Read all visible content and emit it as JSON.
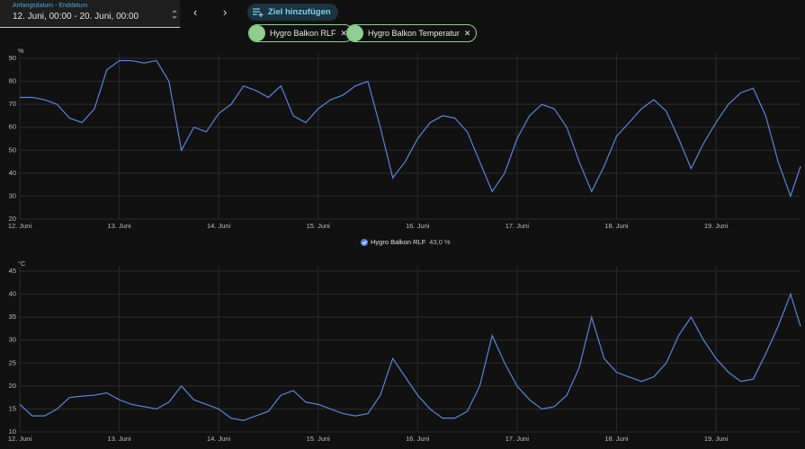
{
  "date_picker": {
    "label": "Anfangsdatum - Enddatum",
    "value": "12. Juni, 00:00 - 20. Juni, 00:00"
  },
  "add_target": "Ziel hinzufügen",
  "targets": [
    "Hygro Balkon RLF",
    "Hygro Balkon Temperatur"
  ],
  "chart_data": [
    {
      "type": "line",
      "y_unit": "%",
      "grid": true,
      "x": [
        0,
        0.125,
        0.25,
        0.375,
        0.5,
        0.625,
        0.75,
        0.875,
        1,
        1.125,
        1.25,
        1.375,
        1.5,
        1.625,
        1.75,
        1.875,
        2,
        2.125,
        2.25,
        2.375,
        2.5,
        2.625,
        2.75,
        2.875,
        3,
        3.125,
        3.25,
        3.375,
        3.5,
        3.625,
        3.75,
        3.875,
        4,
        4.125,
        4.25,
        4.375,
        4.5,
        4.625,
        4.75,
        4.875,
        5,
        5.125,
        5.25,
        5.375,
        5.5,
        5.625,
        5.75,
        5.875,
        6,
        6.125,
        6.25,
        6.375,
        6.5,
        6.625,
        6.75,
        6.875,
        7,
        7.125,
        7.25,
        7.375,
        7.5,
        7.625,
        7.75,
        7.85
      ],
      "series": [
        {
          "name": "Hygro Balkon RLF",
          "color": "#5b84d8",
          "legend_value": "43,0 %",
          "values": [
            73,
            73,
            72,
            70,
            64,
            62,
            68,
            85,
            89,
            89,
            88,
            89,
            80,
            50,
            60,
            58,
            66,
            70,
            78,
            76,
            73,
            78,
            65,
            62,
            68,
            72,
            74,
            78,
            80,
            60,
            38,
            45,
            55,
            62,
            65,
            64,
            58,
            45,
            32,
            40,
            55,
            65,
            70,
            68,
            60,
            45,
            32,
            43,
            56,
            62,
            68,
            72,
            67,
            55,
            42,
            53,
            62,
            70,
            75,
            77,
            65,
            45,
            30,
            43
          ]
        }
      ],
      "xlim": [
        0,
        7.85
      ],
      "xticks": [
        {
          "value": 0,
          "label": "12. Juni"
        },
        {
          "value": 1,
          "label": "13. Juni"
        },
        {
          "value": 2,
          "label": "14. Juni"
        },
        {
          "value": 3,
          "label": "15. Juni"
        },
        {
          "value": 4,
          "label": "16. Juni"
        },
        {
          "value": 5,
          "label": "17. Juni"
        },
        {
          "value": 6,
          "label": "18. Juni"
        },
        {
          "value": 7,
          "label": "19. Juni"
        }
      ],
      "ylim": [
        20,
        90
      ],
      "yticks": [
        20,
        30,
        40,
        50,
        60,
        70,
        80,
        90
      ]
    },
    {
      "type": "line",
      "y_unit": "°C",
      "grid": true,
      "color": "#5b84d8",
      "x": [
        0,
        0.125,
        0.25,
        0.375,
        0.5,
        0.625,
        0.75,
        0.875,
        1,
        1.125,
        1.25,
        1.375,
        1.5,
        1.625,
        1.75,
        1.875,
        2,
        2.125,
        2.25,
        2.375,
        2.5,
        2.625,
        2.75,
        2.875,
        3,
        3.125,
        3.25,
        3.375,
        3.5,
        3.625,
        3.75,
        3.875,
        4,
        4.125,
        4.25,
        4.375,
        4.5,
        4.625,
        4.75,
        4.875,
        5,
        5.125,
        5.25,
        5.375,
        5.5,
        5.625,
        5.75,
        5.875,
        6,
        6.125,
        6.25,
        6.375,
        6.5,
        6.625,
        6.75,
        6.875,
        7,
        7.125,
        7.25,
        7.375,
        7.5,
        7.625,
        7.75,
        7.85
      ],
      "values": [
        16,
        13.5,
        13.5,
        15,
        17.5,
        17.8,
        18,
        18.5,
        17,
        16,
        15.5,
        15,
        16.5,
        20,
        17,
        16,
        15,
        13,
        12.5,
        13.5,
        14.5,
        18,
        19,
        16.5,
        16,
        15,
        14,
        13.5,
        14,
        18,
        26,
        22,
        18,
        15,
        13,
        13,
        14.5,
        20,
        31,
        25,
        20,
        17,
        15,
        15.5,
        18,
        24,
        35,
        26,
        23,
        22,
        21,
        22,
        25,
        31,
        35,
        30,
        26,
        23,
        21,
        21.5,
        27,
        33,
        40,
        33
      ],
      "xlim": [
        0,
        7.85
      ],
      "xticks": [
        {
          "value": 0,
          "label": "12. Juni"
        },
        {
          "value": 1,
          "label": "13. Juni"
        },
        {
          "value": 2,
          "label": "14. Juni"
        },
        {
          "value": 3,
          "label": "15. Juni"
        },
        {
          "value": 4,
          "label": "16. Juni"
        },
        {
          "value": 5,
          "label": "17. Juni"
        },
        {
          "value": 6,
          "label": "18. Juni"
        },
        {
          "value": 7,
          "label": "19. Juni"
        }
      ],
      "ylim": [
        10,
        45
      ],
      "yticks": [
        10,
        15,
        20,
        25,
        30,
        35,
        40,
        45
      ]
    }
  ]
}
